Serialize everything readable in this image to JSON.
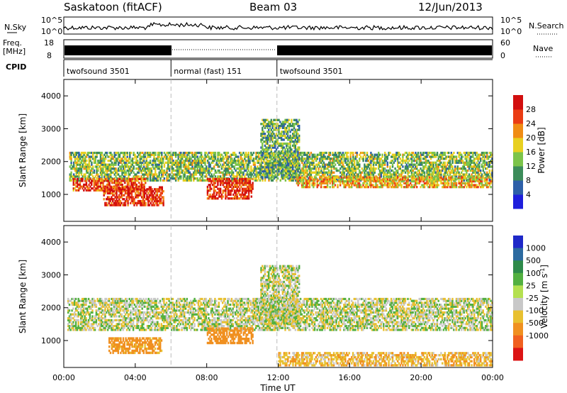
{
  "header": {
    "station": "Saskatoon (fitACF)",
    "beam": "Beam 03",
    "date": "12/Jun/2013"
  },
  "noise_panel": {
    "left_label": "N.Sky",
    "right_label": "N.Search",
    "y_ticks_left": [
      "10^5",
      "10^0"
    ],
    "y_ticks_right": [
      "10^5",
      "10^0"
    ]
  },
  "freq_panel": {
    "left_label_1": "Freq.",
    "left_label_2": "[MHz]",
    "right_label": "Nave",
    "y_ticks_left": [
      "18",
      "8"
    ],
    "y_ticks_right": [
      "60",
      "0"
    ],
    "cpid_label": "CPID"
  },
  "cpid_segments": [
    {
      "label": "twofsound 3501",
      "start_hour": 0,
      "end_hour": 6.0
    },
    {
      "label": "normal (fast) 151",
      "start_hour": 6.0,
      "end_hour": 11.93
    },
    {
      "label": "twofsound 3501",
      "start_hour": 11.93,
      "end_hour": 24
    }
  ],
  "chart_data": [
    {
      "type": "heatmap",
      "title": "",
      "xlabel": "Time UT",
      "ylabel": "Slant Range [km]",
      "x_ticks": [
        "00:00",
        "04:00",
        "08:00",
        "12:00",
        "16:00",
        "20:00",
        "00:00"
      ],
      "xlim_hours": [
        0,
        24
      ],
      "y_ticks": [
        1000,
        2000,
        3000,
        4000
      ],
      "ylim": [
        180,
        4500
      ],
      "colorbar_label": "Power [dB]",
      "colorbar_ticks": [
        4,
        8,
        12,
        16,
        20,
        24,
        28
      ],
      "colorbar_range": [
        0,
        32
      ],
      "colors": [
        "#1e1edc",
        "#2d5fa8",
        "#3c8c5a",
        "#7cc44a",
        "#e8d020",
        "#f08c14",
        "#ea3c14",
        "#d20f0f"
      ],
      "echo_regions": [
        {
          "t0": 0.3,
          "t1": 24,
          "r0": 1400,
          "r1": 2300,
          "db": 14
        },
        {
          "t0": 0.5,
          "t1": 4.6,
          "r0": 1100,
          "r1": 1500,
          "db": 26
        },
        {
          "t0": 2.2,
          "t1": 5.6,
          "r0": 650,
          "r1": 1250,
          "db": 28
        },
        {
          "t0": 8.0,
          "t1": 10.6,
          "r0": 850,
          "r1": 1500,
          "db": 28
        },
        {
          "t0": 11.0,
          "t1": 13.2,
          "r0": 1500,
          "r1": 3300,
          "db": 12
        },
        {
          "t0": 13.0,
          "t1": 24,
          "r0": 1200,
          "r1": 1550,
          "db": 20
        }
      ]
    },
    {
      "type": "heatmap",
      "title": "",
      "xlabel": "Time UT",
      "ylabel": "Slant Range [km]",
      "x_ticks": [
        "00:00",
        "04:00",
        "08:00",
        "12:00",
        "16:00",
        "20:00",
        "00:00"
      ],
      "xlim_hours": [
        0,
        24
      ],
      "y_ticks": [
        1000,
        2000,
        3000,
        4000
      ],
      "ylim": [
        180,
        4500
      ],
      "colorbar_label": "Velocity [m s",
      "colorbar_label_sup": "-1",
      "colorbar_label_end": "]",
      "colorbar_ticks": [
        "1000",
        "500",
        "100",
        "25",
        "-25",
        "-100",
        "-500",
        "-1000"
      ],
      "colors": [
        "#1e28c8",
        "#2c6aa0",
        "#2e8a4a",
        "#52b040",
        "#b4e050",
        "#c8c8c8",
        "#e8c030",
        "#f09020",
        "#f06020",
        "#dc1414"
      ],
      "echo_regions": [
        {
          "t0": 0.2,
          "t1": 24,
          "r0": 1300,
          "r1": 2300,
          "v": 0
        },
        {
          "t0": 2.5,
          "t1": 5.5,
          "r0": 600,
          "r1": 1100,
          "v": -150
        },
        {
          "t0": 8.0,
          "t1": 10.6,
          "r0": 900,
          "r1": 1400,
          "v": -300
        },
        {
          "t0": 11.0,
          "t1": 13.2,
          "r0": 1500,
          "r1": 3300,
          "v": 0
        },
        {
          "t0": 12.0,
          "t1": 24,
          "r0": 220,
          "r1": 650,
          "v": -80
        }
      ]
    }
  ]
}
